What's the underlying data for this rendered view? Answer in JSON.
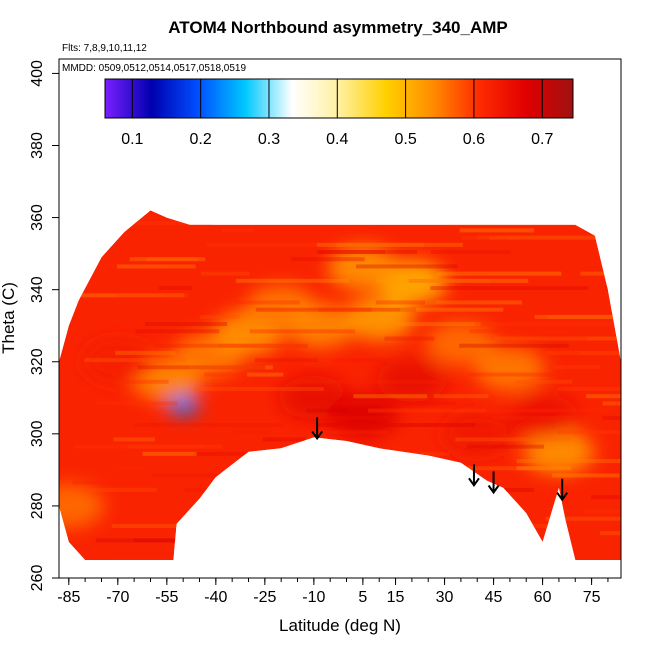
{
  "chart_data": {
    "type": "heatmap",
    "title": "ATOM4 Northbound asymmetry_340_AMP",
    "flights_label": "Flts: 7,8,9,10,11,12",
    "dates_label": "MMDD: 0509,0512,0514,0517,0518,0519",
    "xlabel": "Latitude (deg N)",
    "ylabel": "Theta (C)",
    "xlim": [
      -88,
      84
    ],
    "ylim": [
      260,
      404
    ],
    "x_ticks": [
      -85,
      -70,
      -55,
      -40,
      -25,
      -10,
      5,
      15,
      30,
      45,
      60,
      75
    ],
    "y_ticks": [
      260,
      280,
      300,
      320,
      340,
      360,
      380,
      400
    ],
    "colorbar": {
      "min": 0.06,
      "max": 0.745,
      "ticks": [
        0.1,
        0.2,
        0.3,
        0.4,
        0.5,
        0.6,
        0.7
      ],
      "colors": [
        "#7a1fff",
        "#0000b0",
        "#0050ff",
        "#00c8ff",
        "#ffffff",
        "#fff0a0",
        "#ffd000",
        "#ff8c00",
        "#ff2a00",
        "#e00000",
        "#a01010"
      ]
    },
    "coverage_outline": [
      [
        -85,
        330
      ],
      [
        -82,
        337
      ],
      [
        -75,
        349
      ],
      [
        -68,
        356
      ],
      [
        -60,
        362
      ],
      [
        -55,
        360
      ],
      [
        -48,
        358
      ],
      [
        -30,
        358
      ],
      [
        0,
        358
      ],
      [
        30,
        358
      ],
      [
        60,
        358
      ],
      [
        70,
        358
      ],
      [
        76,
        355
      ],
      [
        80,
        340
      ],
      [
        84,
        320
      ],
      [
        84,
        265
      ],
      [
        75,
        265
      ],
      [
        70,
        265
      ],
      [
        67,
        276
      ],
      [
        65,
        285
      ],
      [
        60,
        270
      ],
      [
        55,
        278
      ],
      [
        48,
        285
      ],
      [
        43,
        287
      ],
      [
        35,
        292
      ],
      [
        25,
        294
      ],
      [
        10,
        296
      ],
      [
        0,
        298
      ],
      [
        -10,
        299
      ],
      [
        -20,
        296
      ],
      [
        -30,
        295
      ],
      [
        -40,
        288
      ],
      [
        -45,
        282
      ],
      [
        -52,
        275
      ],
      [
        -53,
        265
      ],
      [
        -80,
        265
      ],
      [
        -85,
        270
      ],
      [
        -88,
        280
      ],
      [
        -88,
        320
      ]
    ],
    "value_patches": [
      {
        "lat": -10,
        "theta": 310,
        "value": 0.66
      },
      {
        "lat": 5,
        "theta": 305,
        "value": 0.68
      },
      {
        "lat": 20,
        "theta": 315,
        "value": 0.66
      },
      {
        "lat": -55,
        "theta": 315,
        "value": 0.54
      },
      {
        "lat": -42,
        "theta": 322,
        "value": 0.55
      },
      {
        "lat": -30,
        "theta": 328,
        "value": 0.53
      },
      {
        "lat": -20,
        "theta": 335,
        "value": 0.55
      },
      {
        "lat": -8,
        "theta": 330,
        "value": 0.54
      },
      {
        "lat": 10,
        "theta": 332,
        "value": 0.52
      },
      {
        "lat": 20,
        "theta": 342,
        "value": 0.5
      },
      {
        "lat": 5,
        "theta": 346,
        "value": 0.53
      },
      {
        "lat": 35,
        "theta": 325,
        "value": 0.56
      },
      {
        "lat": 50,
        "theta": 318,
        "value": 0.55
      },
      {
        "lat": 65,
        "theta": 295,
        "value": 0.53
      },
      {
        "lat": -50,
        "theta": 308,
        "value": 0.22
      },
      {
        "lat": 40,
        "theta": 300,
        "value": 0.64
      },
      {
        "lat": 60,
        "theta": 305,
        "value": 0.65
      },
      {
        "lat": -70,
        "theta": 320,
        "value": 0.63
      },
      {
        "lat": -85,
        "theta": 280,
        "value": 0.56
      }
    ],
    "arrows": [
      {
        "lat": -9,
        "theta": 299
      },
      {
        "lat": 39,
        "theta": 286
      },
      {
        "lat": 45,
        "theta": 284
      },
      {
        "lat": 66,
        "theta": 282
      }
    ]
  }
}
